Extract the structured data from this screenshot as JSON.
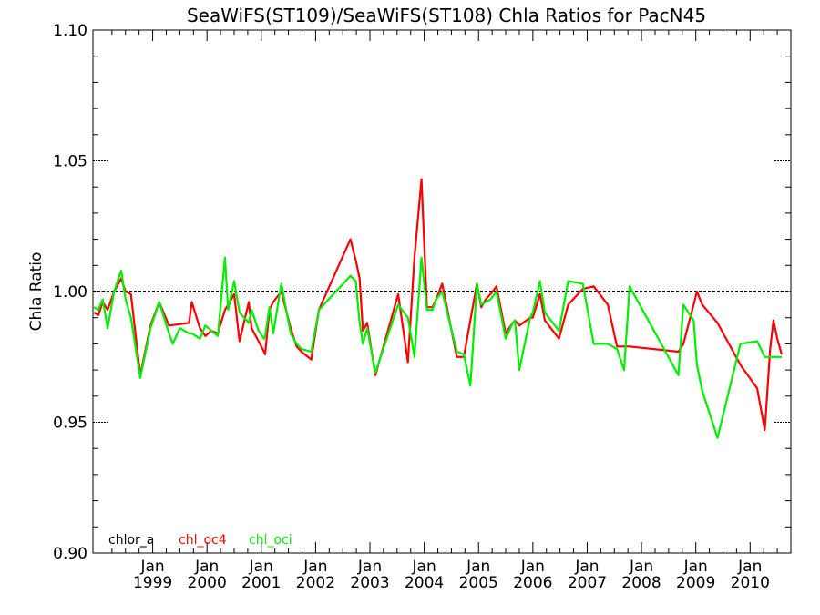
{
  "chart_data": {
    "type": "line",
    "title": "SeaWiFS(ST109)/SeaWiFS(ST108)  Chla Ratios for PacN45",
    "xlabel": "",
    "ylabel": "Chla Ratio",
    "ylim": [
      0.9,
      1.1
    ],
    "yticks": [
      "0.90",
      "0.95",
      "1.00",
      "1.05",
      "1.10"
    ],
    "xlim": [
      1997.9,
      2010.75
    ],
    "xticks": [
      {
        "month": "Jan",
        "year": "1999",
        "x": 1999.0
      },
      {
        "month": "Jan",
        "year": "2000",
        "x": 2000.0
      },
      {
        "month": "Jan",
        "year": "2001",
        "x": 2001.0
      },
      {
        "month": "Jan",
        "year": "2002",
        "x": 2002.0
      },
      {
        "month": "Jan",
        "year": "2003",
        "x": 2003.0
      },
      {
        "month": "Jan",
        "year": "2004",
        "x": 2004.0
      },
      {
        "month": "Jan",
        "year": "2005",
        "x": 2005.0
      },
      {
        "month": "Jan",
        "year": "2006",
        "x": 2006.0
      },
      {
        "month": "Jan",
        "year": "2007",
        "x": 2007.0
      },
      {
        "month": "Jan",
        "year": "2008",
        "x": 2008.0
      },
      {
        "month": "Jan",
        "year": "2009",
        "x": 2009.0
      },
      {
        "month": "Jan",
        "year": "2010",
        "x": 2010.0
      }
    ],
    "reference_line": 1.0,
    "legend": [
      {
        "name": "chlor_a",
        "color": "#000000"
      },
      {
        "name": "chl_oc4",
        "color": "#ff0000"
      },
      {
        "name": "chl_oci",
        "color": "#00ee00"
      }
    ],
    "series": [
      {
        "name": "chl_oc4",
        "color": "#ff0000",
        "x": [
          1997.92,
          1998.0,
          1998.08,
          1998.17,
          1998.29,
          1998.42,
          1998.5,
          1998.6,
          1998.77,
          1998.96,
          1999.12,
          1999.3,
          1999.67,
          1999.72,
          1999.87,
          1999.97,
          2000.08,
          2000.2,
          2000.33,
          2000.39,
          2000.5,
          2000.6,
          2000.77,
          2000.82,
          2000.95,
          2001.05,
          2001.07,
          2001.15,
          2001.22,
          2001.37,
          2001.54,
          2001.65,
          2001.74,
          2001.92,
          2002.06,
          2002.64,
          2002.74,
          2002.81,
          2002.87,
          2002.95,
          2003.1,
          2003.52,
          2003.7,
          2003.82,
          2003.95,
          2004.05,
          2004.15,
          2004.22,
          2004.33,
          2004.6,
          2004.73,
          2004.97,
          2005.05,
          2005.13,
          2005.22,
          2005.33,
          2005.5,
          2005.63,
          2005.67,
          2005.75,
          2005.95,
          2006.0,
          2006.13,
          2006.22,
          2006.48,
          2006.65,
          2006.92,
          2007.12,
          2007.38,
          2007.55,
          2007.68,
          2007.78,
          2008.68,
          2008.77,
          2008.96,
          2009.02,
          2009.12,
          2009.4,
          2009.82,
          2010.13,
          2010.27,
          2010.37,
          2010.43,
          2010.5,
          2010.58
        ],
        "values": [
          0.992,
          0.991,
          0.996,
          0.993,
          1.0,
          1.005,
          1.0,
          0.999,
          0.968,
          0.987,
          0.996,
          0.987,
          0.988,
          0.996,
          0.986,
          0.983,
          0.985,
          0.984,
          0.993,
          0.995,
          0.999,
          0.981,
          0.996,
          0.986,
          0.981,
          0.977,
          0.976,
          0.993,
          0.996,
          1.0,
          0.986,
          0.979,
          0.977,
          0.974,
          0.993,
          1.02,
          1.012,
          1.005,
          0.985,
          0.988,
          0.968,
          0.999,
          0.973,
          1.013,
          1.043,
          0.994,
          0.994,
          0.997,
          1.003,
          0.975,
          0.975,
          1.003,
          0.994,
          0.997,
          0.999,
          1.002,
          0.984,
          0.988,
          0.989,
          0.987,
          0.99,
          0.99,
          0.999,
          0.989,
          0.982,
          0.995,
          1.001,
          1.002,
          0.995,
          0.979,
          0.979,
          0.979,
          0.977,
          0.98,
          0.995,
          1.0,
          0.995,
          0.988,
          0.972,
          0.963,
          0.947,
          0.978,
          0.989,
          0.982,
          0.976
        ]
      },
      {
        "name": "chl_oci",
        "color": "#00ee00",
        "x": [
          1997.92,
          1998.0,
          1998.08,
          1998.17,
          1998.29,
          1998.42,
          1998.5,
          1998.6,
          1998.77,
          1998.96,
          1999.12,
          1999.3,
          1999.37,
          1999.5,
          1999.67,
          1999.72,
          1999.87,
          1999.97,
          2000.08,
          2000.2,
          2000.33,
          2000.39,
          2000.5,
          2000.6,
          2000.77,
          2000.82,
          2000.95,
          2001.05,
          2001.07,
          2001.15,
          2001.22,
          2001.37,
          2001.54,
          2001.65,
          2001.74,
          2001.92,
          2002.06,
          2002.64,
          2002.74,
          2002.81,
          2002.87,
          2002.95,
          2003.1,
          2003.52,
          2003.7,
          2003.82,
          2003.95,
          2004.05,
          2004.15,
          2004.22,
          2004.33,
          2004.6,
          2004.73,
          2004.85,
          2004.97,
          2005.05,
          2005.13,
          2005.22,
          2005.33,
          2005.5,
          2005.63,
          2005.67,
          2005.75,
          2005.95,
          2006.0,
          2006.13,
          2006.22,
          2006.48,
          2006.65,
          2006.92,
          2007.12,
          2007.38,
          2007.55,
          2007.68,
          2007.78,
          2008.68,
          2008.77,
          2008.96,
          2009.02,
          2009.12,
          2009.4,
          2009.82,
          2010.13,
          2010.27,
          2010.37,
          2010.43,
          2010.5,
          2010.58
        ],
        "values": [
          0.994,
          0.993,
          0.997,
          0.986,
          1.0,
          1.008,
          0.997,
          0.99,
          0.967,
          0.986,
          0.996,
          0.984,
          0.98,
          0.986,
          0.984,
          0.984,
          0.982,
          0.987,
          0.985,
          0.983,
          1.013,
          0.993,
          1.004,
          0.992,
          0.988,
          0.993,
          0.985,
          0.982,
          0.983,
          0.994,
          0.984,
          1.003,
          0.984,
          0.98,
          0.978,
          0.977,
          0.993,
          1.006,
          1.004,
          0.988,
          0.98,
          0.986,
          0.969,
          0.995,
          0.99,
          0.975,
          1.013,
          0.993,
          0.993,
          0.997,
          1.0,
          0.977,
          0.976,
          0.964,
          1.003,
          0.995,
          0.996,
          0.997,
          1.0,
          0.982,
          0.988,
          0.989,
          0.97,
          0.99,
          0.992,
          1.004,
          0.992,
          0.985,
          1.004,
          1.003,
          0.98,
          0.98,
          0.978,
          0.97,
          1.002,
          0.968,
          0.995,
          0.989,
          0.972,
          0.962,
          0.944,
          0.98,
          0.981,
          0.975,
          0.975,
          0.975,
          0.975,
          0.975
        ]
      }
    ]
  }
}
